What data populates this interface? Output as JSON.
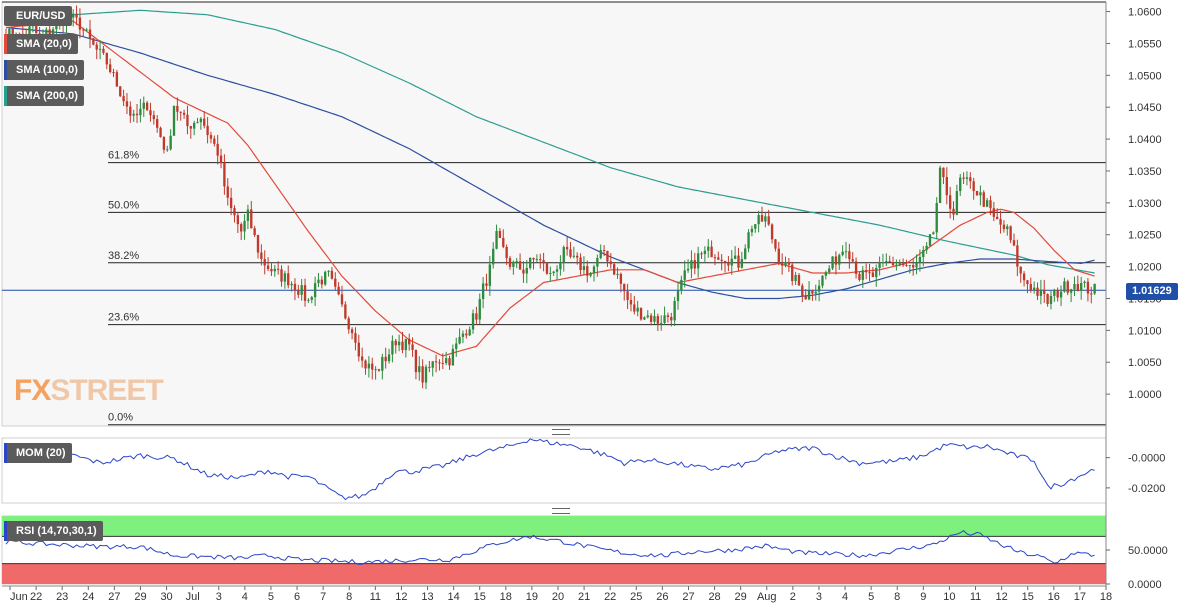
{
  "symbol": "EUR/USD",
  "indicators": {
    "sma20": "SMA (20,0)",
    "sma100": "SMA (100,0)",
    "sma200": "SMA (200,0)",
    "mom": "MOM (20)",
    "rsi": "RSI (14,70,30,1)"
  },
  "colors": {
    "up": "#2e8b3e",
    "down": "#c0392b",
    "sma20": "#e34a3a",
    "sma100": "#2c4fa0",
    "sma200": "#2a9d8f",
    "price_line": "#1f4fa8",
    "mom_line": "#2b45c8",
    "rsi_line": "#2b45c8",
    "rsi_overbought": "#7ef07e",
    "rsi_oversold": "#f06a6a"
  },
  "logo": {
    "fx": "FX",
    "street": "STREET"
  },
  "price_tag": "1.01629",
  "chart_data": [
    {
      "type": "candlestick",
      "title": "EUR/USD",
      "ylim": [
        0.995,
        1.0615
      ],
      "y_ticks": [
        "1.0600",
        "1.0550",
        "1.0500",
        "1.0450",
        "1.0400",
        "1.0350",
        "1.0300",
        "1.0250",
        "1.0200",
        "1.0150",
        "1.0100",
        "1.0050",
        "1.0000"
      ],
      "y_tick_values": [
        1.06,
        1.055,
        1.05,
        1.045,
        1.04,
        1.035,
        1.03,
        1.025,
        1.02,
        1.015,
        1.01,
        1.005,
        1.0
      ],
      "x_labels": [
        "Jun",
        "22",
        "23",
        "24",
        "27",
        "29",
        "30",
        "Jul",
        "3",
        "4",
        "5",
        "6",
        "7",
        "8",
        "11",
        "12",
        "13",
        "14",
        "15",
        "18",
        "19",
        "20",
        "21",
        "22",
        "25",
        "26",
        "27",
        "28",
        "29",
        "Aug",
        "2",
        "3",
        "4",
        "5",
        "8",
        "9",
        "10",
        "11",
        "12",
        "15",
        "16",
        "17",
        "18"
      ],
      "fibonacci": [
        {
          "label": "61.8%",
          "value": 1.0363
        },
        {
          "label": "50.0%",
          "value": 1.0285
        },
        {
          "label": "38.2%",
          "value": 1.0206
        },
        {
          "label": "23.6%",
          "value": 1.0109
        },
        {
          "label": "0.0%",
          "value": 0.9952
        }
      ],
      "top_line": 1.0615,
      "current_price": 1.01629,
      "anchors": [
        [
          0,
          1.0565
        ],
        [
          4,
          1.056
        ],
        [
          8,
          1.0575
        ],
        [
          10,
          1.0555
        ],
        [
          14,
          1.0575
        ],
        [
          18,
          1.0595
        ],
        [
          22,
          1.058
        ],
        [
          26,
          1.0545
        ],
        [
          30,
          1.052
        ],
        [
          34,
          1.0475
        ],
        [
          38,
          1.043
        ],
        [
          42,
          1.0455
        ],
        [
          46,
          1.0405
        ],
        [
          48,
          1.0375
        ],
        [
          50,
          1.0455
        ],
        [
          54,
          1.042
        ],
        [
          58,
          1.0435
        ],
        [
          60,
          1.041
        ],
        [
          63,
          1.038
        ],
        [
          66,
          1.03
        ],
        [
          70,
          1.0255
        ],
        [
          72,
          1.028
        ],
        [
          76,
          1.021
        ],
        [
          80,
          1.019
        ],
        [
          84,
          1.018
        ],
        [
          88,
          1.016
        ],
        [
          90,
          1.0145
        ],
        [
          92,
          1.0175
        ],
        [
          96,
          1.0185
        ],
        [
          100,
          1.0135
        ],
        [
          104,
          1.009
        ],
        [
          106,
          1.005
        ],
        [
          110,
          1.0035
        ],
        [
          114,
          1.0065
        ],
        [
          116,
          1.0085
        ],
        [
          120,
          1.0075
        ],
        [
          122,
          1.0045
        ],
        [
          124,
          1.0025
        ],
        [
          128,
          1.0055
        ],
        [
          132,
          1.0055
        ],
        [
          136,
          1.0095
        ],
        [
          140,
          1.0125
        ],
        [
          142,
          1.0165
        ],
        [
          144,
          1.0195
        ],
        [
          146,
          1.0245
        ],
        [
          150,
          1.0205
        ],
        [
          154,
          1.0195
        ],
        [
          158,
          1.0215
        ],
        [
          162,
          1.0185
        ],
        [
          166,
          1.022
        ],
        [
          170,
          1.0205
        ],
        [
          174,
          1.019
        ],
        [
          178,
          1.0225
        ],
        [
          182,
          1.0185
        ],
        [
          186,
          1.0135
        ],
        [
          190,
          1.0125
        ],
        [
          194,
          1.0115
        ],
        [
          198,
          1.0125
        ],
        [
          202,
          1.0185
        ],
        [
          206,
          1.0215
        ],
        [
          210,
          1.0225
        ],
        [
          214,
          1.0215
        ],
        [
          218,
          1.0205
        ],
        [
          222,
          1.0265
        ],
        [
          226,
          1.0275
        ],
        [
          230,
          1.0215
        ],
        [
          234,
          1.0185
        ],
        [
          238,
          1.0155
        ],
        [
          242,
          1.0175
        ],
        [
          246,
          1.0205
        ],
        [
          250,
          1.0235
        ],
        [
          254,
          1.0185
        ],
        [
          258,
          1.0185
        ],
        [
          262,
          1.0205
        ],
        [
          266,
          1.0205
        ],
        [
          270,
          1.0195
        ],
        [
          274,
          1.0225
        ],
        [
          276,
          1.0255
        ],
        [
          278,
          1.0345
        ],
        [
          280,
          1.0315
        ],
        [
          282,
          1.0285
        ],
        [
          284,
          1.0335
        ],
        [
          288,
          1.0325
        ],
        [
          292,
          1.0295
        ],
        [
          294,
          1.0275
        ],
        [
          298,
          1.0255
        ],
        [
          300,
          1.0225
        ],
        [
          302,
          1.0185
        ],
        [
          306,
          1.0165
        ],
        [
          310,
          1.0145
        ],
        [
          314,
          1.0165
        ],
        [
          318,
          1.0175
        ],
        [
          322,
          1.0165
        ],
        [
          324,
          1.0163
        ]
      ],
      "sma20": [
        [
          0,
          1.0575
        ],
        [
          20,
          1.0585
        ],
        [
          30,
          1.0545
        ],
        [
          40,
          1.0505
        ],
        [
          50,
          1.0465
        ],
        [
          60,
          1.044
        ],
        [
          66,
          1.0425
        ],
        [
          72,
          1.039
        ],
        [
          80,
          1.033
        ],
        [
          90,
          1.0255
        ],
        [
          100,
          1.0185
        ],
        [
          110,
          1.013
        ],
        [
          120,
          1.0085
        ],
        [
          130,
          1.006
        ],
        [
          140,
          1.0075
        ],
        [
          150,
          1.0135
        ],
        [
          160,
          1.0175
        ],
        [
          170,
          1.0185
        ],
        [
          180,
          1.0195
        ],
        [
          190,
          1.0195
        ],
        [
          200,
          1.0175
        ],
        [
          210,
          1.0185
        ],
        [
          220,
          1.0195
        ],
        [
          230,
          1.0205
        ],
        [
          240,
          1.019
        ],
        [
          250,
          1.019
        ],
        [
          260,
          1.0195
        ],
        [
          268,
          1.0205
        ],
        [
          276,
          1.0235
        ],
        [
          284,
          1.0265
        ],
        [
          292,
          1.0285
        ],
        [
          296,
          1.029
        ],
        [
          300,
          1.0285
        ],
        [
          306,
          1.026
        ],
        [
          312,
          1.0225
        ],
        [
          318,
          1.0195
        ],
        [
          324,
          1.0185
        ]
      ],
      "sma100": [
        [
          0,
          1.0575
        ],
        [
          20,
          1.0565
        ],
        [
          40,
          1.0535
        ],
        [
          60,
          1.05
        ],
        [
          80,
          1.047
        ],
        [
          100,
          1.0435
        ],
        [
          120,
          1.0385
        ],
        [
          140,
          1.0325
        ],
        [
          160,
          1.0265
        ],
        [
          180,
          1.0215
        ],
        [
          200,
          1.0175
        ],
        [
          210,
          1.016
        ],
        [
          220,
          1.015
        ],
        [
          230,
          1.015
        ],
        [
          240,
          1.0155
        ],
        [
          250,
          1.0165
        ],
        [
          260,
          1.018
        ],
        [
          270,
          1.0195
        ],
        [
          280,
          1.0205
        ],
        [
          290,
          1.0212
        ],
        [
          300,
          1.0212
        ],
        [
          310,
          1.0208
        ],
        [
          320,
          1.0205
        ],
        [
          324,
          1.021
        ]
      ],
      "sma200": [
        [
          0,
          1.0585
        ],
        [
          20,
          1.0595
        ],
        [
          40,
          1.0602
        ],
        [
          60,
          1.0595
        ],
        [
          80,
          1.0572
        ],
        [
          100,
          1.0535
        ],
        [
          120,
          1.0488
        ],
        [
          140,
          1.0435
        ],
        [
          160,
          1.0395
        ],
        [
          180,
          1.0355
        ],
        [
          200,
          1.0325
        ],
        [
          220,
          1.0305
        ],
        [
          240,
          1.0285
        ],
        [
          260,
          1.0265
        ],
        [
          280,
          1.024
        ],
        [
          300,
          1.0218
        ],
        [
          310,
          1.0203
        ],
        [
          324,
          1.019
        ]
      ]
    },
    {
      "type": "line",
      "title": "MOM (20)",
      "ylim": [
        -0.03,
        0.013
      ],
      "y_ticks": [
        "-0.0000",
        "-0.0200"
      ],
      "y_tick_values": [
        0.0,
        -0.02
      ],
      "anchors": [
        [
          0,
          0.0005
        ],
        [
          20,
          0.0015
        ],
        [
          28,
          -0.0035
        ],
        [
          40,
          0.0015
        ],
        [
          50,
          -0.0005
        ],
        [
          60,
          -0.0115
        ],
        [
          70,
          -0.0135
        ],
        [
          78,
          -0.0085
        ],
        [
          84,
          -0.0125
        ],
        [
          90,
          -0.0125
        ],
        [
          100,
          -0.0265
        ],
        [
          106,
          -0.0255
        ],
        [
          110,
          -0.0195
        ],
        [
          116,
          -0.0085
        ],
        [
          120,
          -0.0095
        ],
        [
          130,
          -0.0055
        ],
        [
          140,
          0.0025
        ],
        [
          150,
          0.0075
        ],
        [
          156,
          0.0125
        ],
        [
          160,
          0.0105
        ],
        [
          170,
          0.0075
        ],
        [
          180,
          0.0005
        ],
        [
          184,
          -0.0035
        ],
        [
          190,
          -0.0015
        ],
        [
          198,
          -0.0035
        ],
        [
          206,
          -0.0065
        ],
        [
          210,
          -0.0075
        ],
        [
          220,
          -0.0045
        ],
        [
          230,
          0.0045
        ],
        [
          240,
          0.0065
        ],
        [
          246,
          0.0015
        ],
        [
          254,
          -0.0035
        ],
        [
          264,
          -0.0025
        ],
        [
          272,
          0.0005
        ],
        [
          280,
          0.0085
        ],
        [
          288,
          0.0065
        ],
        [
          292,
          0.0075
        ],
        [
          300,
          0.0015
        ],
        [
          306,
          -0.0015
        ],
        [
          310,
          -0.0195
        ],
        [
          314,
          -0.0175
        ],
        [
          318,
          -0.0135
        ],
        [
          322,
          -0.0095
        ],
        [
          324,
          -0.0075
        ]
      ]
    },
    {
      "type": "line",
      "title": "RSI (14,70,30,1)",
      "ylim": [
        0,
        100
      ],
      "y_ticks": [
        "50.0000",
        "0.0000"
      ],
      "y_tick_values": [
        50,
        0
      ],
      "overbought": 70,
      "oversold": 30,
      "anchors": [
        [
          0,
          62
        ],
        [
          15,
          58
        ],
        [
          28,
          55
        ],
        [
          40,
          55
        ],
        [
          50,
          42
        ],
        [
          60,
          40
        ],
        [
          70,
          38
        ],
        [
          78,
          42
        ],
        [
          86,
          36
        ],
        [
          96,
          34
        ],
        [
          106,
          32
        ],
        [
          114,
          34
        ],
        [
          122,
          36
        ],
        [
          132,
          36
        ],
        [
          138,
          46
        ],
        [
          146,
          60
        ],
        [
          156,
          70
        ],
        [
          166,
          62
        ],
        [
          176,
          52
        ],
        [
          186,
          44
        ],
        [
          196,
          42
        ],
        [
          206,
          48
        ],
        [
          216,
          50
        ],
        [
          226,
          56
        ],
        [
          236,
          46
        ],
        [
          246,
          44
        ],
        [
          256,
          42
        ],
        [
          266,
          50
        ],
        [
          276,
          58
        ],
        [
          284,
          76
        ],
        [
          290,
          72
        ],
        [
          296,
          58
        ],
        [
          302,
          46
        ],
        [
          308,
          40
        ],
        [
          312,
          30
        ],
        [
          318,
          46
        ],
        [
          324,
          42
        ]
      ]
    }
  ]
}
